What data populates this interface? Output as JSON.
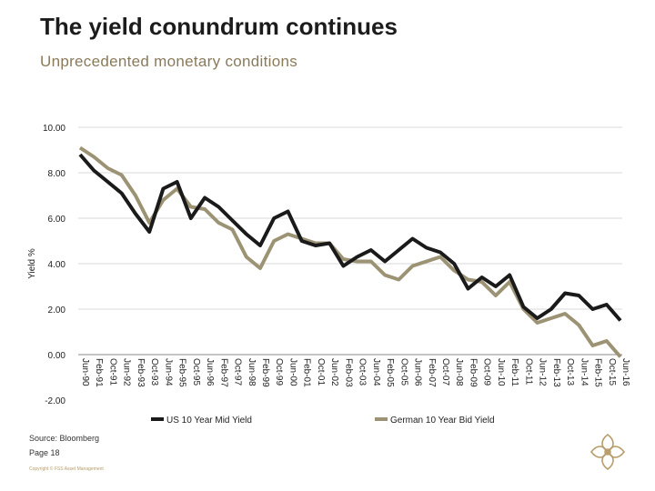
{
  "header": {
    "title": "The yield conundrum continues",
    "subtitle": "Unprecedented monetary conditions"
  },
  "footer": {
    "source": "Source: Bloomberg",
    "page": "Page 18",
    "copyright": "Copyright © FSS Asset Management"
  },
  "colors": {
    "us": "#1a1a1a",
    "de": "#9c9274",
    "grid": "#d9d9d9"
  },
  "chart_data": {
    "type": "line",
    "ylabel": "Yield %",
    "ylim": [
      -2.0,
      10.0
    ],
    "yticks": [
      10,
      8,
      6,
      4,
      2,
      0,
      -2
    ],
    "ytick_labels": [
      "10.00",
      "8.00",
      "6.00",
      "4.00",
      "2.00",
      "0.00",
      "-2.00"
    ],
    "legend_position": "bottom",
    "xtick_labels": [
      "Jun-90",
      "Feb-91",
      "Oct-91",
      "Jun-92",
      "Feb-93",
      "Oct-93",
      "Jun-94",
      "Feb-95",
      "Oct-95",
      "Jun-96",
      "Feb-97",
      "Oct-97",
      "Jun-98",
      "Feb-99",
      "Oct-99",
      "Jun-00",
      "Feb-01",
      "Oct-01",
      "Jun-02",
      "Feb-03",
      "Oct-03",
      "Jun-04",
      "Feb-05",
      "Oct-05",
      "Jun-06",
      "Feb-07",
      "Oct-07",
      "Jun-08",
      "Feb-09",
      "Oct-09",
      "Jun-10",
      "Feb-11",
      "Oct-11",
      "Jun-12",
      "Feb-13",
      "Oct-13",
      "Jun-14",
      "Feb-15",
      "Oct-15",
      "Jun-16"
    ],
    "series": [
      {
        "name": "US 10 Year Mid Yield",
        "values": [
          8.8,
          8.1,
          7.6,
          7.1,
          6.2,
          5.4,
          7.3,
          7.6,
          6.0,
          6.9,
          6.5,
          5.9,
          5.3,
          4.8,
          6.0,
          6.3,
          5.0,
          4.8,
          4.9,
          3.9,
          4.3,
          4.6,
          4.1,
          4.6,
          5.1,
          4.7,
          4.5,
          4.0,
          2.9,
          3.4,
          3.0,
          3.5,
          2.1,
          1.6,
          2.0,
          2.7,
          2.6,
          2.0,
          2.2,
          1.5
        ]
      },
      {
        "name": "German 10 Year Bid Yield",
        "values": [
          9.1,
          8.7,
          8.2,
          7.9,
          7.0,
          5.8,
          6.8,
          7.3,
          6.5,
          6.4,
          5.8,
          5.5,
          4.3,
          3.8,
          5.0,
          5.3,
          5.1,
          4.9,
          4.9,
          4.2,
          4.1,
          4.1,
          3.5,
          3.3,
          3.9,
          4.1,
          4.3,
          3.7,
          3.3,
          3.2,
          2.6,
          3.2,
          2.0,
          1.4,
          1.6,
          1.8,
          1.3,
          0.4,
          0.6,
          -0.1
        ]
      }
    ]
  }
}
